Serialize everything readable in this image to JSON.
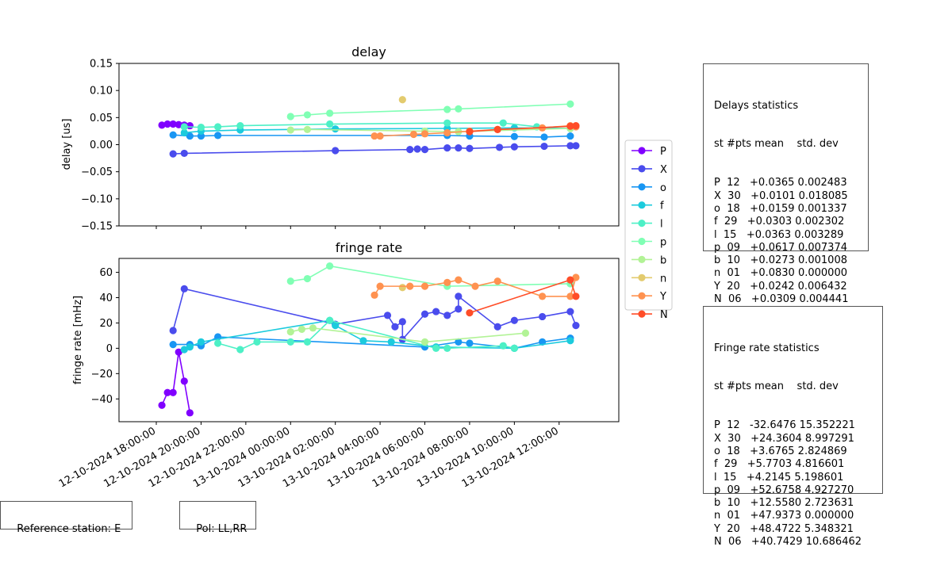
{
  "colors": {
    "P": "#8000ff",
    "X": "#4a4ced",
    "o": "#1996f3",
    "f": "#1ccbdd",
    "l": "#4df0c6",
    "p": "#80ffb4",
    "b": "#b2f396",
    "n": "#e3cb6e",
    "Y": "#ff9250",
    "N": "#ff4d28"
  },
  "legend": [
    "P",
    "X",
    "o",
    "f",
    "l",
    "p",
    "b",
    "n",
    "Y",
    "N"
  ],
  "chart_data": [
    {
      "type": "line",
      "title": "delay",
      "xlabel": "",
      "ylabel": "delay [us]",
      "ylim": [
        -0.15,
        0.15
      ],
      "yticks": [
        0.15,
        0.1,
        0.05,
        0.0,
        -0.05,
        -0.1,
        -0.15
      ],
      "ytick_labels": [
        "0.15",
        "0.10",
        "0.05",
        "0.00",
        "−0.05",
        "−0.10",
        "−0.15"
      ],
      "series": [
        {
          "name": "P",
          "points": [
            [
              "2024-10-12 18:15",
              0.036
            ],
            [
              "2024-10-12 18:30",
              0.038
            ],
            [
              "2024-10-12 18:45",
              0.038
            ],
            [
              "2024-10-12 19:00",
              0.037
            ],
            [
              "2024-10-12 19:15",
              0.036
            ],
            [
              "2024-10-12 19:30",
              0.035
            ]
          ]
        },
        {
          "name": "X",
          "points": [
            [
              "2024-10-12 18:45",
              -0.017
            ],
            [
              "2024-10-12 19:15",
              -0.016
            ],
            [
              "2024-10-13 02:00",
              -0.011
            ],
            [
              "2024-10-13 05:20",
              -0.009
            ],
            [
              "2024-10-13 05:40",
              -0.008
            ],
            [
              "2024-10-13 06:00",
              -0.009
            ],
            [
              "2024-10-13 07:00",
              -0.006
            ],
            [
              "2024-10-13 07:30",
              -0.006
            ],
            [
              "2024-10-13 08:00",
              -0.007
            ],
            [
              "2024-10-13 09:20",
              -0.005
            ],
            [
              "2024-10-13 10:00",
              -0.004
            ],
            [
              "2024-10-13 11:20",
              -0.003
            ],
            [
              "2024-10-13 12:30",
              -0.002
            ],
            [
              "2024-10-13 12:45",
              -0.002
            ]
          ]
        },
        {
          "name": "o",
          "points": [
            [
              "2024-10-12 18:45",
              0.018
            ],
            [
              "2024-10-12 19:30",
              0.016
            ],
            [
              "2024-10-12 20:00",
              0.016
            ],
            [
              "2024-10-12 20:45",
              0.017
            ],
            [
              "2024-10-13 07:00",
              0.017
            ],
            [
              "2024-10-13 08:00",
              0.016
            ],
            [
              "2024-10-13 10:00",
              0.015
            ],
            [
              "2024-10-13 11:20",
              0.014
            ],
            [
              "2024-10-13 12:30",
              0.016
            ]
          ]
        },
        {
          "name": "f",
          "points": [
            [
              "2024-10-12 19:15",
              0.022
            ],
            [
              "2024-10-12 20:00",
              0.025
            ],
            [
              "2024-10-12 21:45",
              0.027
            ],
            [
              "2024-10-13 02:00",
              0.029
            ],
            [
              "2024-10-13 07:00",
              0.03
            ],
            [
              "2024-10-13 10:00",
              0.031
            ],
            [
              "2024-10-13 12:30",
              0.03
            ]
          ]
        },
        {
          "name": "l",
          "points": [
            [
              "2024-10-12 19:15",
              0.033
            ],
            [
              "2024-10-12 20:00",
              0.032
            ],
            [
              "2024-10-12 20:45",
              0.033
            ],
            [
              "2024-10-12 21:45",
              0.035
            ],
            [
              "2024-10-13 01:45",
              0.038
            ],
            [
              "2024-10-13 07:00",
              0.04
            ],
            [
              "2024-10-13 09:30",
              0.04
            ],
            [
              "2024-10-13 11:00",
              0.033
            ]
          ]
        },
        {
          "name": "p",
          "points": [
            [
              "2024-10-13 00:00",
              0.052
            ],
            [
              "2024-10-13 00:45",
              0.055
            ],
            [
              "2024-10-13 01:45",
              0.058
            ],
            [
              "2024-10-13 07:00",
              0.065
            ],
            [
              "2024-10-13 07:30",
              0.066
            ],
            [
              "2024-10-13 12:30",
              0.075
            ]
          ]
        },
        {
          "name": "b",
          "points": [
            [
              "2024-10-13 00:00",
              0.027
            ],
            [
              "2024-10-13 00:45",
              0.028
            ],
            [
              "2024-10-13 06:00",
              0.025
            ],
            [
              "2024-10-13 07:30",
              0.024
            ],
            [
              "2024-10-13 12:30",
              0.03
            ]
          ]
        },
        {
          "name": "n",
          "points": [
            [
              "2024-10-13 05:00",
              0.083
            ]
          ]
        },
        {
          "name": "Y",
          "points": [
            [
              "2024-10-13 03:45",
              0.016
            ],
            [
              "2024-10-13 04:00",
              0.016
            ],
            [
              "2024-10-13 05:30",
              0.019
            ],
            [
              "2024-10-13 06:00",
              0.02
            ],
            [
              "2024-10-13 07:00",
              0.022
            ],
            [
              "2024-10-13 08:00",
              0.025
            ],
            [
              "2024-10-13 09:15",
              0.028
            ],
            [
              "2024-10-13 11:15",
              0.031
            ],
            [
              "2024-10-13 12:30",
              0.035
            ],
            [
              "2024-10-13 12:45",
              0.033
            ]
          ]
        },
        {
          "name": "N",
          "points": [
            [
              "2024-10-13 08:00",
              0.024
            ],
            [
              "2024-10-13 09:15",
              0.028
            ],
            [
              "2024-10-13 12:30",
              0.034
            ],
            [
              "2024-10-13 12:45",
              0.035
            ]
          ]
        }
      ]
    },
    {
      "type": "line",
      "title": "fringe rate",
      "xlabel": "",
      "ylabel": "fringe rate [mHz]",
      "ylim": [
        -58,
        71
      ],
      "yticks": [
        60,
        40,
        20,
        0,
        -20,
        -40
      ],
      "ytick_labels": [
        "60",
        "40",
        "20",
        "0",
        "−20",
        "−40"
      ],
      "xlim": [
        "2024-10-12 16:20",
        "2024-10-13 14:40"
      ],
      "xticks": [
        "12-10-2024 18:00:00",
        "12-10-2024 20:00:00",
        "12-10-2024 22:00:00",
        "13-10-2024 00:00:00",
        "13-10-2024 02:00:00",
        "13-10-2024 04:00:00",
        "13-10-2024 06:00:00",
        "13-10-2024 08:00:00",
        "13-10-2024 10:00:00",
        "13-10-2024 12:00:00"
      ],
      "series": [
        {
          "name": "P",
          "points": [
            [
              "2024-10-12 18:15",
              -45
            ],
            [
              "2024-10-12 18:30",
              -35
            ],
            [
              "2024-10-12 18:45",
              -35
            ],
            [
              "2024-10-12 19:00",
              -3
            ],
            [
              "2024-10-12 19:15",
              -26
            ],
            [
              "2024-10-12 19:30",
              -51
            ]
          ]
        },
        {
          "name": "X",
          "points": [
            [
              "2024-10-12 18:45",
              14
            ],
            [
              "2024-10-12 19:15",
              47
            ],
            [
              "2024-10-13 02:00",
              19
            ],
            [
              "2024-10-13 04:20",
              26
            ],
            [
              "2024-10-13 04:40",
              17
            ],
            [
              "2024-10-13 05:00",
              21
            ],
            [
              "2024-10-13 05:00",
              7
            ],
            [
              "2024-10-13 06:00",
              27
            ],
            [
              "2024-10-13 06:30",
              29
            ],
            [
              "2024-10-13 07:00",
              26
            ],
            [
              "2024-10-13 07:30",
              31
            ],
            [
              "2024-10-13 07:30",
              41
            ],
            [
              "2024-10-13 09:15",
              17
            ],
            [
              "2024-10-13 10:00",
              22
            ],
            [
              "2024-10-13 11:15",
              25
            ],
            [
              "2024-10-13 12:30",
              29
            ],
            [
              "2024-10-13 12:45",
              18
            ]
          ]
        },
        {
          "name": "o",
          "points": [
            [
              "2024-10-12 18:45",
              3
            ],
            [
              "2024-10-12 19:30",
              3
            ],
            [
              "2024-10-12 20:00",
              2
            ],
            [
              "2024-10-12 20:45",
              9
            ],
            [
              "2024-10-13 06:00",
              1
            ],
            [
              "2024-10-13 07:30",
              5
            ],
            [
              "2024-10-13 08:00",
              4
            ],
            [
              "2024-10-13 10:00",
              0
            ],
            [
              "2024-10-13 11:15",
              5
            ],
            [
              "2024-10-13 12:30",
              8
            ]
          ]
        },
        {
          "name": "f",
          "points": [
            [
              "2024-10-12 19:15",
              -1
            ],
            [
              "2024-10-12 19:30",
              1
            ],
            [
              "2024-10-12 20:00",
              5
            ],
            [
              "2024-10-13 01:45",
              22
            ],
            [
              "2024-10-13 02:00",
              18
            ],
            [
              "2024-10-13 03:15",
              6
            ],
            [
              "2024-10-13 04:30",
              5
            ],
            [
              "2024-10-13 06:30",
              1
            ],
            [
              "2024-10-13 10:00",
              0
            ],
            [
              "2024-10-13 12:30",
              6
            ]
          ]
        },
        {
          "name": "l",
          "points": [
            [
              "2024-10-12 20:45",
              4
            ],
            [
              "2024-10-12 21:45",
              -1
            ],
            [
              "2024-10-12 22:30",
              5
            ],
            [
              "2024-10-13 00:00",
              5
            ],
            [
              "2024-10-13 00:45",
              5
            ],
            [
              "2024-10-13 01:45",
              22
            ],
            [
              "2024-10-13 06:30",
              0
            ],
            [
              "2024-10-13 07:00",
              0
            ],
            [
              "2024-10-13 09:30",
              2
            ],
            [
              "2024-10-13 10:00",
              0
            ]
          ]
        },
        {
          "name": "p",
          "points": [
            [
              "2024-10-13 00:00",
              53
            ],
            [
              "2024-10-13 00:45",
              55
            ],
            [
              "2024-10-13 01:45",
              65
            ],
            [
              "2024-10-13 07:00",
              49
            ],
            [
              "2024-10-13 12:30",
              51
            ]
          ]
        },
        {
          "name": "b",
          "points": [
            [
              "2024-10-13 00:00",
              13
            ],
            [
              "2024-10-13 00:30",
              15
            ],
            [
              "2024-10-13 01:00",
              16
            ],
            [
              "2024-10-13 06:00",
              5
            ],
            [
              "2024-10-13 10:30",
              12
            ]
          ]
        },
        {
          "name": "n",
          "points": [
            [
              "2024-10-13 05:00",
              48
            ]
          ]
        },
        {
          "name": "Y",
          "points": [
            [
              "2024-10-13 03:45",
              42
            ],
            [
              "2024-10-13 04:00",
              49
            ],
            [
              "2024-10-13 05:20",
              49
            ],
            [
              "2024-10-13 06:00",
              49
            ],
            [
              "2024-10-13 07:00",
              52
            ],
            [
              "2024-10-13 07:30",
              54
            ],
            [
              "2024-10-13 08:15",
              49
            ],
            [
              "2024-10-13 09:15",
              53
            ],
            [
              "2024-10-13 11:15",
              41
            ],
            [
              "2024-10-13 12:30",
              41
            ],
            [
              "2024-10-13 12:45",
              56
            ]
          ]
        },
        {
          "name": "N",
          "points": [
            [
              "2024-10-13 08:00",
              28
            ],
            [
              "2024-10-13 12:30",
              54
            ],
            [
              "2024-10-13 12:45",
              41
            ]
          ]
        }
      ]
    }
  ],
  "delay_stats": {
    "title": "Delays statistics",
    "header": "st #pts mean    std. dev",
    "rows": [
      "P  12   +0.0365 0.002483",
      "X  30   +0.0101 0.018085",
      "o  18   +0.0159 0.001337",
      "f  29   +0.0303 0.002302",
      "l  15   +0.0363 0.003289",
      "p  09   +0.0617 0.007374",
      "b  10   +0.0273 0.001008",
      "n  01   +0.0830 0.000000",
      "Y  20   +0.0242 0.006432",
      "N  06   +0.0309 0.004441"
    ]
  },
  "rate_stats": {
    "title": "Fringe rate statistics",
    "header": "st #pts mean    std. dev",
    "rows": [
      "P  12   -32.6476 15.352221",
      "X  30   +24.3604 8.997291",
      "o  18   +3.6765 2.824869",
      "f  29   +5.7703 4.816601",
      "l  15   +4.2145 5.198601",
      "p  09   +52.6758 4.927270",
      "b  10   +12.5580 2.723631",
      "n  01   +47.9373 0.000000",
      "Y  20   +48.4722 5.348321",
      "N  06   +40.7429 10.686462"
    ]
  },
  "footer": {
    "reference": "Reference station: E",
    "pol": "Pol: LL,RR"
  }
}
